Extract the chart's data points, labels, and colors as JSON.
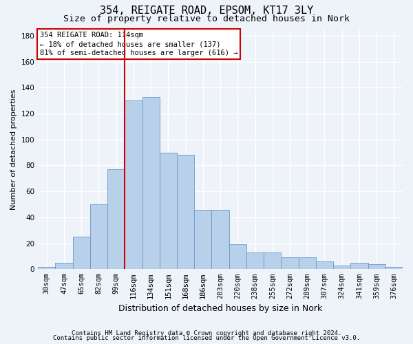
{
  "title1": "354, REIGATE ROAD, EPSOM, KT17 3LY",
  "title2": "Size of property relative to detached houses in Nork",
  "xlabel": "Distribution of detached houses by size in Nork",
  "ylabel": "Number of detached properties",
  "categories": [
    "30sqm",
    "47sqm",
    "65sqm",
    "82sqm",
    "99sqm",
    "116sqm",
    "134sqm",
    "151sqm",
    "168sqm",
    "186sqm",
    "203sqm",
    "220sqm",
    "238sqm",
    "255sqm",
    "272sqm",
    "289sqm",
    "307sqm",
    "324sqm",
    "341sqm",
    "359sqm",
    "376sqm"
  ],
  "values": [
    2,
    5,
    25,
    50,
    77,
    130,
    133,
    90,
    88,
    46,
    46,
    19,
    13,
    13,
    9,
    9,
    6,
    3,
    5,
    4,
    2
  ],
  "bar_color": "#b8d0ea",
  "bar_edge_color": "#6699cc",
  "vline_index": 5,
  "vline_color": "#cc0000",
  "annotation_text": "354 REIGATE ROAD: 114sqm\n← 18% of detached houses are smaller (137)\n81% of semi-detached houses are larger (616) →",
  "annotation_box_color": "#ffffff",
  "annotation_box_edge": "#cc0000",
  "ylim": [
    0,
    185
  ],
  "yticks": [
    0,
    20,
    40,
    60,
    80,
    100,
    120,
    140,
    160,
    180
  ],
  "footer1": "Contains HM Land Registry data © Crown copyright and database right 2024.",
  "footer2": "Contains public sector information licensed under the Open Government Licence v3.0.",
  "bg_color": "#eef2f9",
  "grid_color": "#ffffff",
  "title1_fontsize": 11,
  "title2_fontsize": 9.5,
  "xlabel_fontsize": 9,
  "ylabel_fontsize": 8,
  "tick_fontsize": 7.5,
  "footer_fontsize": 6.5
}
